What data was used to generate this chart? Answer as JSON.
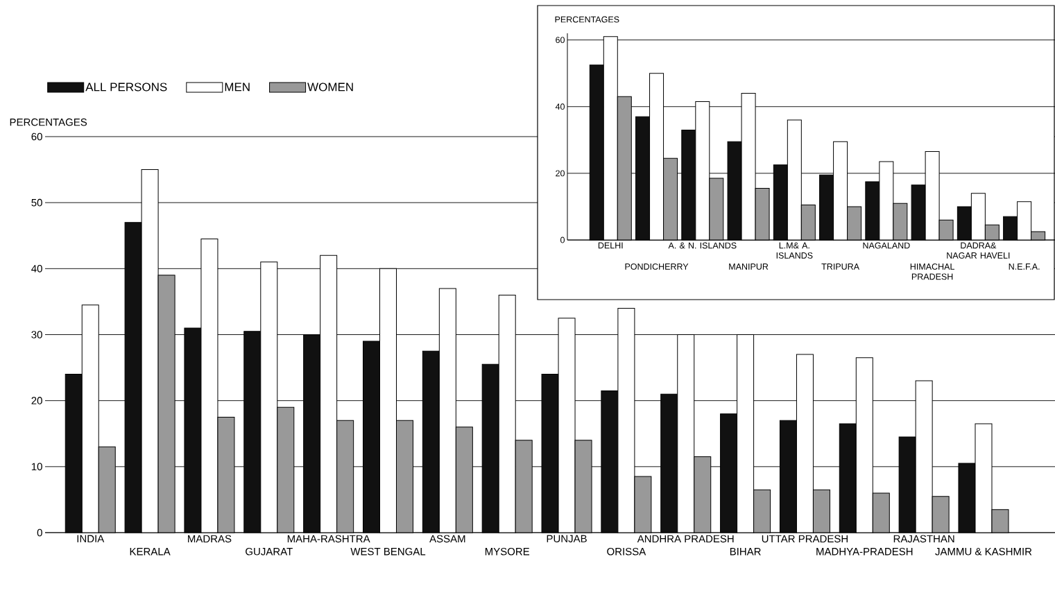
{
  "chart_data": [
    {
      "type": "bar",
      "ylabel": "PERCENTAGES",
      "categories": [
        "INDIA",
        "KERALA",
        "MADRAS",
        "GUJARAT",
        "MAHA-RASHTRA",
        "WEST BENGAL",
        "ASSAM",
        "MYSORE",
        "PUNJAB",
        "ORISSA",
        "ANDHRA PRADESH",
        "BIHAR",
        "UTTAR PRADESH",
        "MADHYA-PRADESH",
        "RAJASTHAN",
        "JAMMU & KASHMIR"
      ],
      "series": [
        {
          "name": "ALL PERSONS",
          "color": "#111111",
          "values": [
            24,
            47,
            31,
            30.5,
            30,
            29,
            27.5,
            25.5,
            24,
            21.5,
            21,
            18,
            17,
            16.5,
            14.5,
            10.5
          ]
        },
        {
          "name": "MEN",
          "color": "#ffffff",
          "values": [
            34.5,
            55,
            44.5,
            41,
            42,
            40,
            37,
            36,
            32.5,
            34,
            30,
            30,
            27,
            26.5,
            23,
            16.5
          ]
        },
        {
          "name": "WOMEN",
          "color": "#999999",
          "values": [
            13,
            39,
            17.5,
            19,
            17,
            17,
            16,
            14,
            14,
            8.5,
            11.5,
            6.5,
            6.5,
            6,
            5.5,
            3.5
          ]
        }
      ],
      "ylim": [
        0,
        60
      ],
      "yticks": [
        0,
        10,
        20,
        30,
        40,
        50,
        60
      ],
      "grid": "y",
      "legend": "top left"
    },
    {
      "type": "bar",
      "ylabel": "PERCENTAGES",
      "categories": [
        "DELHI",
        "PONDICHERRY",
        "A. & N. ISLANDS",
        "MANIPUR",
        "L.M& A. ISLANDS",
        "TRIPURA",
        "NAGALAND",
        "HIMACHAL PRADESH",
        "DADRA& NAGAR HAVELI",
        "N.E.F.A."
      ],
      "series": [
        {
          "color": "#111111",
          "values": [
            52.5,
            37,
            33,
            29.5,
            22.5,
            19.5,
            17.5,
            16.5,
            10,
            7
          ]
        },
        {
          "color": "#ffffff",
          "values": [
            61,
            50,
            41.5,
            44,
            36,
            29.5,
            23.5,
            26.5,
            14,
            11.5
          ]
        },
        {
          "color": "#999999",
          "values": [
            43,
            24.5,
            18.5,
            15.5,
            10.5,
            10,
            11,
            6,
            4.5,
            2.5
          ]
        }
      ],
      "ylim": [
        0,
        62
      ],
      "yticks": [
        0,
        20,
        40,
        60
      ],
      "grid": "y"
    }
  ]
}
